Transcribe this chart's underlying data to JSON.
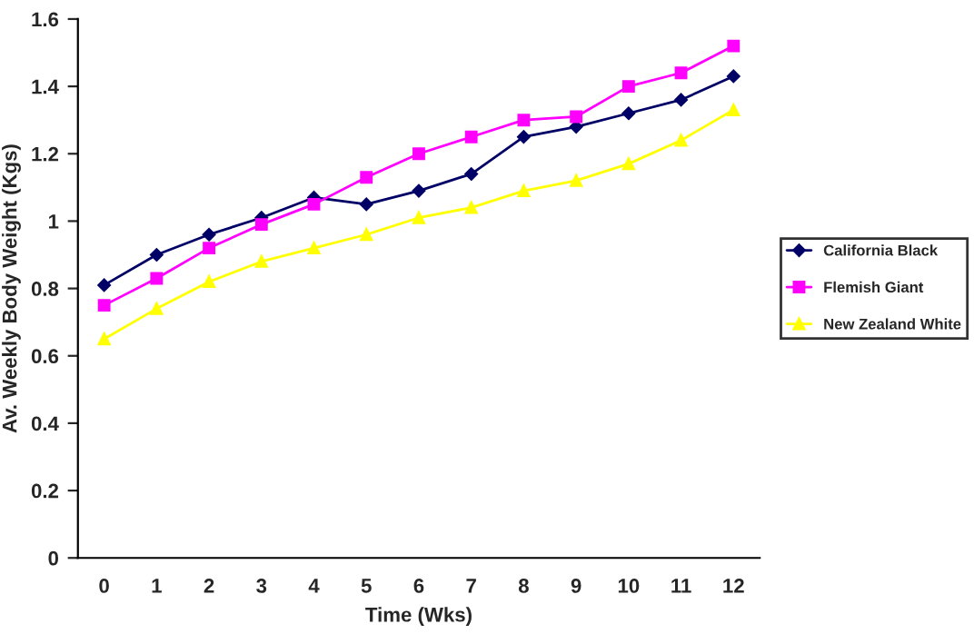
{
  "chart_data": {
    "type": "line",
    "xlabel": "Time (Wks)",
    "ylabel": "Av. Weekly Body Weight (Kgs)",
    "categories": [
      "0",
      "1",
      "2",
      "3",
      "4",
      "5",
      "6",
      "7",
      "8",
      "9",
      "10",
      "11",
      "12"
    ],
    "series": [
      {
        "name": "California Black",
        "color": "#000066",
        "marker": "diamond",
        "values": [
          0.81,
          0.9,
          0.96,
          1.01,
          1.07,
          1.05,
          1.09,
          1.14,
          1.25,
          1.28,
          1.32,
          1.36,
          1.43
        ]
      },
      {
        "name": "Flemish Giant",
        "color": "#ff00ff",
        "marker": "square",
        "values": [
          0.75,
          0.83,
          0.92,
          0.99,
          1.05,
          1.13,
          1.2,
          1.25,
          1.3,
          1.31,
          1.4,
          1.44,
          1.52
        ]
      },
      {
        "name": "New Zealand White",
        "color": "#ffff00",
        "marker": "triangle",
        "values": [
          0.65,
          0.74,
          0.82,
          0.88,
          0.92,
          0.96,
          1.01,
          1.04,
          1.09,
          1.12,
          1.17,
          1.24,
          1.33
        ]
      }
    ],
    "ylim": [
      0,
      1.6
    ],
    "yticks": [
      0,
      0.2,
      0.4,
      0.6,
      0.8,
      1,
      1.2,
      1.4,
      1.6
    ],
    "grid": false,
    "legend": "right"
  }
}
